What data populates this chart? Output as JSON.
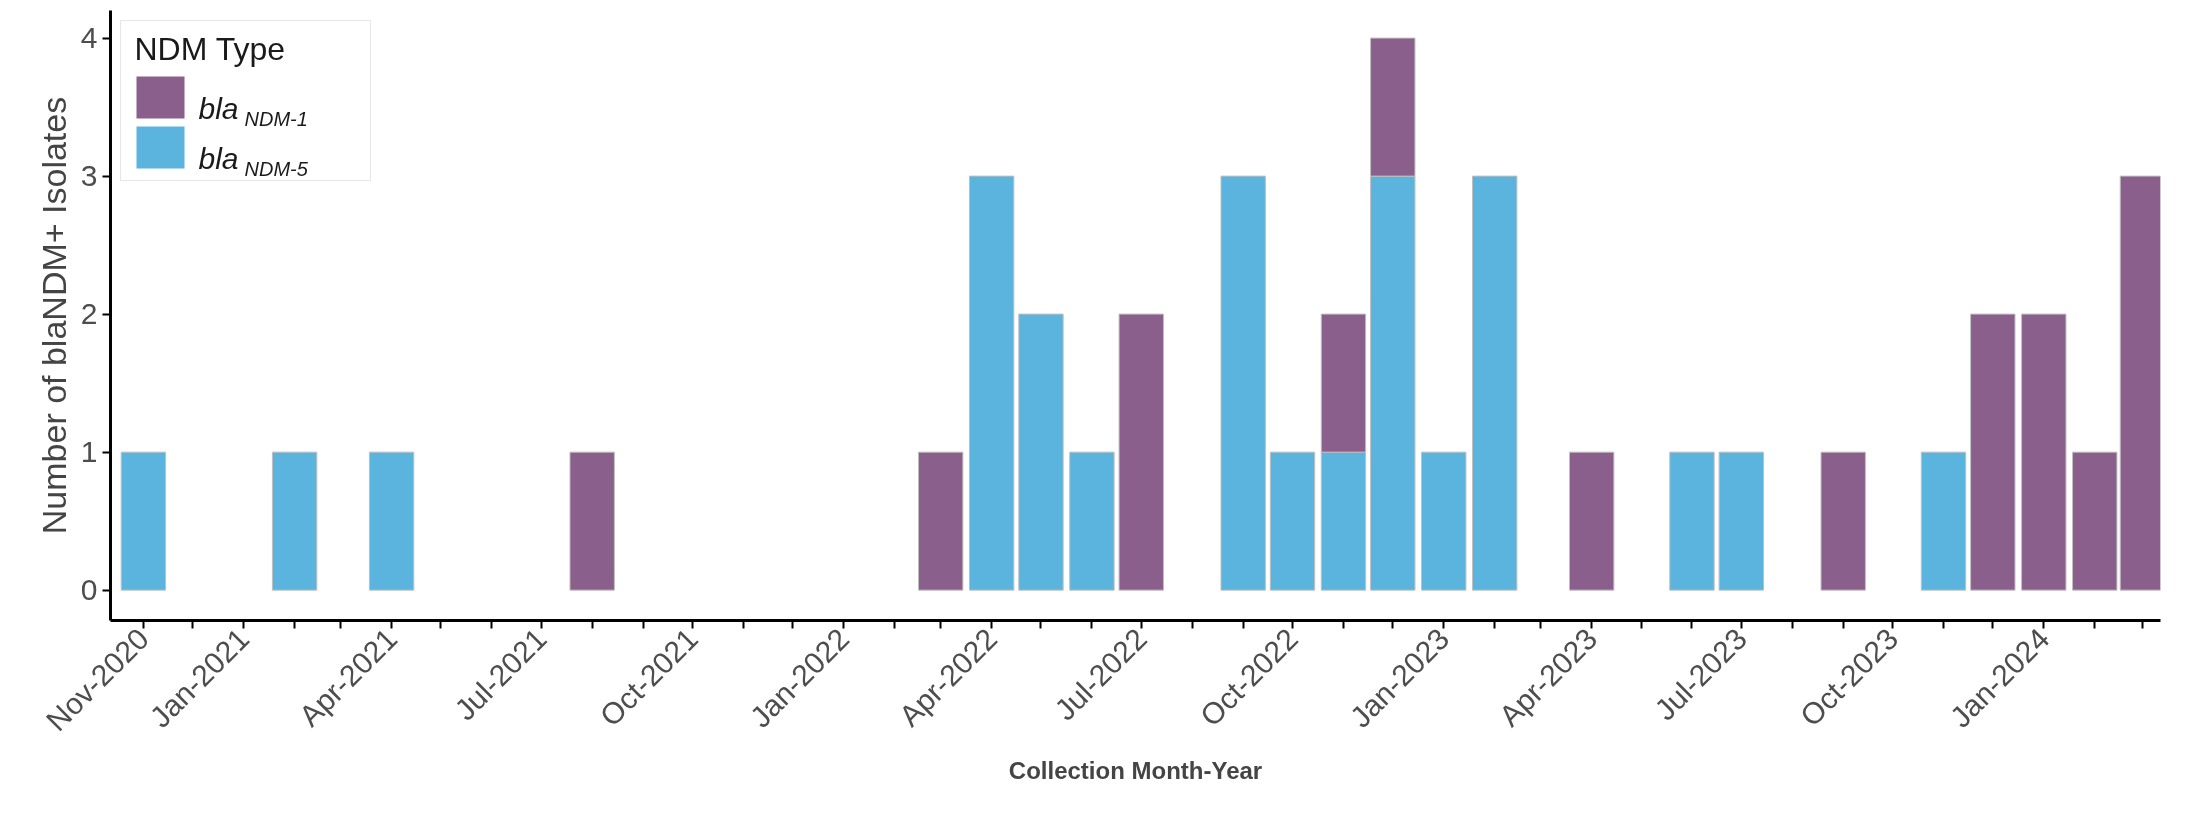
{
  "chart_data": {
    "type": "bar",
    "stacked": true,
    "xlabel": "Collection Month-Year",
    "ylabel": "Number of blaNDM+ Isolates",
    "legend_title": "NDM Type",
    "legend": "top left",
    "grid": false,
    "x": [
      "2020-11",
      "2021-02",
      "2021-04",
      "2021-08",
      "2022-03",
      "2022-04",
      "2022-05",
      "2022-06",
      "2022-07",
      "2022-09",
      "2022-10",
      "2022-11",
      "2022-12",
      "2023-01",
      "2023-02",
      "2023-04",
      "2023-06",
      "2023-07",
      "2023-09",
      "2023-11",
      "2023-12",
      "2024-01",
      "2024-02",
      "2024-03"
    ],
    "series": [
      {
        "name": "bla$_{NDM-5}$",
        "color": "#5ab4de",
        "values": [
          1,
          1,
          1,
          null,
          null,
          3,
          2,
          1,
          null,
          3,
          1,
          1,
          3,
          1,
          3,
          null,
          1,
          1,
          null,
          1,
          null,
          null,
          null,
          null
        ]
      },
      {
        "name": "bla$_{NDM-1}$",
        "color": "#8b5f8c",
        "values": [
          null,
          null,
          null,
          1,
          1,
          null,
          null,
          null,
          2,
          null,
          null,
          1,
          1,
          null,
          null,
          1,
          null,
          null,
          1,
          null,
          2,
          2,
          1,
          3
        ]
      }
    ],
    "ylim": [
      -0.22,
      4.2
    ],
    "yticks": [
      0,
      1,
      2,
      3,
      4
    ],
    "xlim": [
      "2020-10-12",
      "2024-03-12"
    ],
    "xticks": [
      {
        "value": "2020-11",
        "label": "Nov-2020"
      },
      {
        "value": "2020-12",
        "label": null
      },
      {
        "value": "2021-01",
        "label": "Jan-2021"
      },
      {
        "value": "2021-02",
        "label": null
      },
      {
        "value": "2021-03",
        "label": null
      },
      {
        "value": "2021-04",
        "label": "Apr-2021"
      },
      {
        "value": "2021-05",
        "label": null
      },
      {
        "value": "2021-06",
        "label": null
      },
      {
        "value": "2021-07",
        "label": "Jul-2021"
      },
      {
        "value": "2021-08",
        "label": null
      },
      {
        "value": "2021-09",
        "label": null
      },
      {
        "value": "2021-10",
        "label": "Oct-2021"
      },
      {
        "value": "2021-11",
        "label": null
      },
      {
        "value": "2021-12",
        "label": null
      },
      {
        "value": "2022-01",
        "label": "Jan-2022"
      },
      {
        "value": "2022-02",
        "label": null
      },
      {
        "value": "2022-03",
        "label": null
      },
      {
        "value": "2022-04",
        "label": "Apr-2022"
      },
      {
        "value": "2022-05",
        "label": null
      },
      {
        "value": "2022-06",
        "label": null
      },
      {
        "value": "2022-07",
        "label": "Jul-2022"
      },
      {
        "value": "2022-08",
        "label": null
      },
      {
        "value": "2022-09",
        "label": null
      },
      {
        "value": "2022-10",
        "label": "Oct-2022"
      },
      {
        "value": "2022-11",
        "label": null
      },
      {
        "value": "2022-12",
        "label": null
      },
      {
        "value": "2023-01",
        "label": "Jan-2023"
      },
      {
        "value": "2023-02",
        "label": null
      },
      {
        "value": "2023-03",
        "label": null
      },
      {
        "value": "2023-04",
        "label": "Apr-2023"
      },
      {
        "value": "2023-05",
        "label": null
      },
      {
        "value": "2023-06",
        "label": null
      },
      {
        "value": "2023-07",
        "label": "Jul-2023"
      },
      {
        "value": "2023-08",
        "label": null
      },
      {
        "value": "2023-09",
        "label": null
      },
      {
        "value": "2023-10",
        "label": "Oct-2023"
      },
      {
        "value": "2023-11",
        "label": null
      },
      {
        "value": "2023-12",
        "label": null
      },
      {
        "value": "2024-01",
        "label": "Jan-2024"
      },
      {
        "value": "2024-02",
        "label": null
      },
      {
        "value": "2024-03",
        "label": null
      }
    ]
  }
}
